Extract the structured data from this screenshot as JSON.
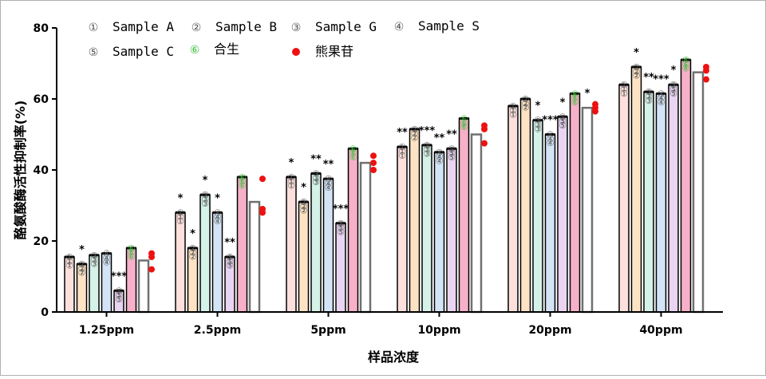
{
  "chart_data": {
    "type": "bar",
    "xlabel": "样品浓度",
    "ylabel": "酪氨酸酶活性抑制率(%)",
    "ylim": [
      0,
      80
    ],
    "yticks": [
      0,
      20,
      40,
      60,
      80
    ],
    "categories": [
      "1.25ppm",
      "2.5ppm",
      "5ppm",
      "10ppm",
      "20ppm",
      "40ppm"
    ],
    "legend_position": "top",
    "series": [
      {
        "name": "Sample A",
        "marker": "①",
        "color": "#fde0dc",
        "markerColor": "#555555",
        "values": [
          15.5,
          28,
          38,
          46.5,
          58,
          64
        ],
        "sig": [
          "",
          "*",
          "*",
          "**",
          "",
          ""
        ]
      },
      {
        "name": "Sample B",
        "marker": "②",
        "color": "#fde3c4",
        "markerColor": "#555555",
        "values": [
          13.5,
          18,
          31,
          51.5,
          60,
          69
        ],
        "sig": [
          "*",
          "*",
          "*",
          "",
          "",
          "*"
        ]
      },
      {
        "name": "Sample G",
        "marker": "③",
        "color": "#d5f2e8",
        "markerColor": "#555555",
        "values": [
          16,
          33,
          39,
          47,
          54,
          62
        ],
        "sig": [
          "",
          "*",
          "**",
          "***",
          "*",
          "**"
        ]
      },
      {
        "name": "Sample S",
        "marker": "④",
        "color": "#d3e4f7",
        "markerColor": "#555555",
        "values": [
          16.5,
          28,
          37.5,
          45,
          50,
          61.5
        ],
        "sig": [
          "",
          "*",
          "**",
          "**",
          "***",
          "***"
        ]
      },
      {
        "name": "Sample C",
        "marker": "⑤",
        "color": "#e9d4f2",
        "markerColor": "#555555",
        "values": [
          6,
          15.5,
          25,
          46,
          55,
          64
        ],
        "sig": [
          "***",
          "**",
          "***",
          "**",
          "*",
          "*"
        ]
      },
      {
        "name": "合生",
        "marker": "⑥",
        "color": "#f7b0c9",
        "markerColor": "#3bbf3b",
        "values": [
          18,
          38,
          46,
          54.5,
          61.5,
          71
        ],
        "sig": [
          "",
          "",
          "",
          "",
          "",
          ""
        ]
      },
      {
        "name": "熊果苷",
        "marker": "●",
        "color": "#ffffff",
        "markerColor": "#ee1111",
        "values": [
          14.5,
          31,
          42,
          50,
          57.5,
          67.5
        ],
        "points": [
          [
            16.5,
            15.5,
            12
          ],
          [
            37.5,
            29,
            28
          ],
          [
            44,
            42,
            40
          ],
          [
            52.5,
            51.5,
            47.5
          ],
          [
            58.5,
            57.5,
            56.5
          ],
          [
            69,
            68,
            65.5
          ]
        ],
        "sig": [
          "",
          "",
          "",
          "",
          "*",
          ""
        ]
      }
    ]
  }
}
